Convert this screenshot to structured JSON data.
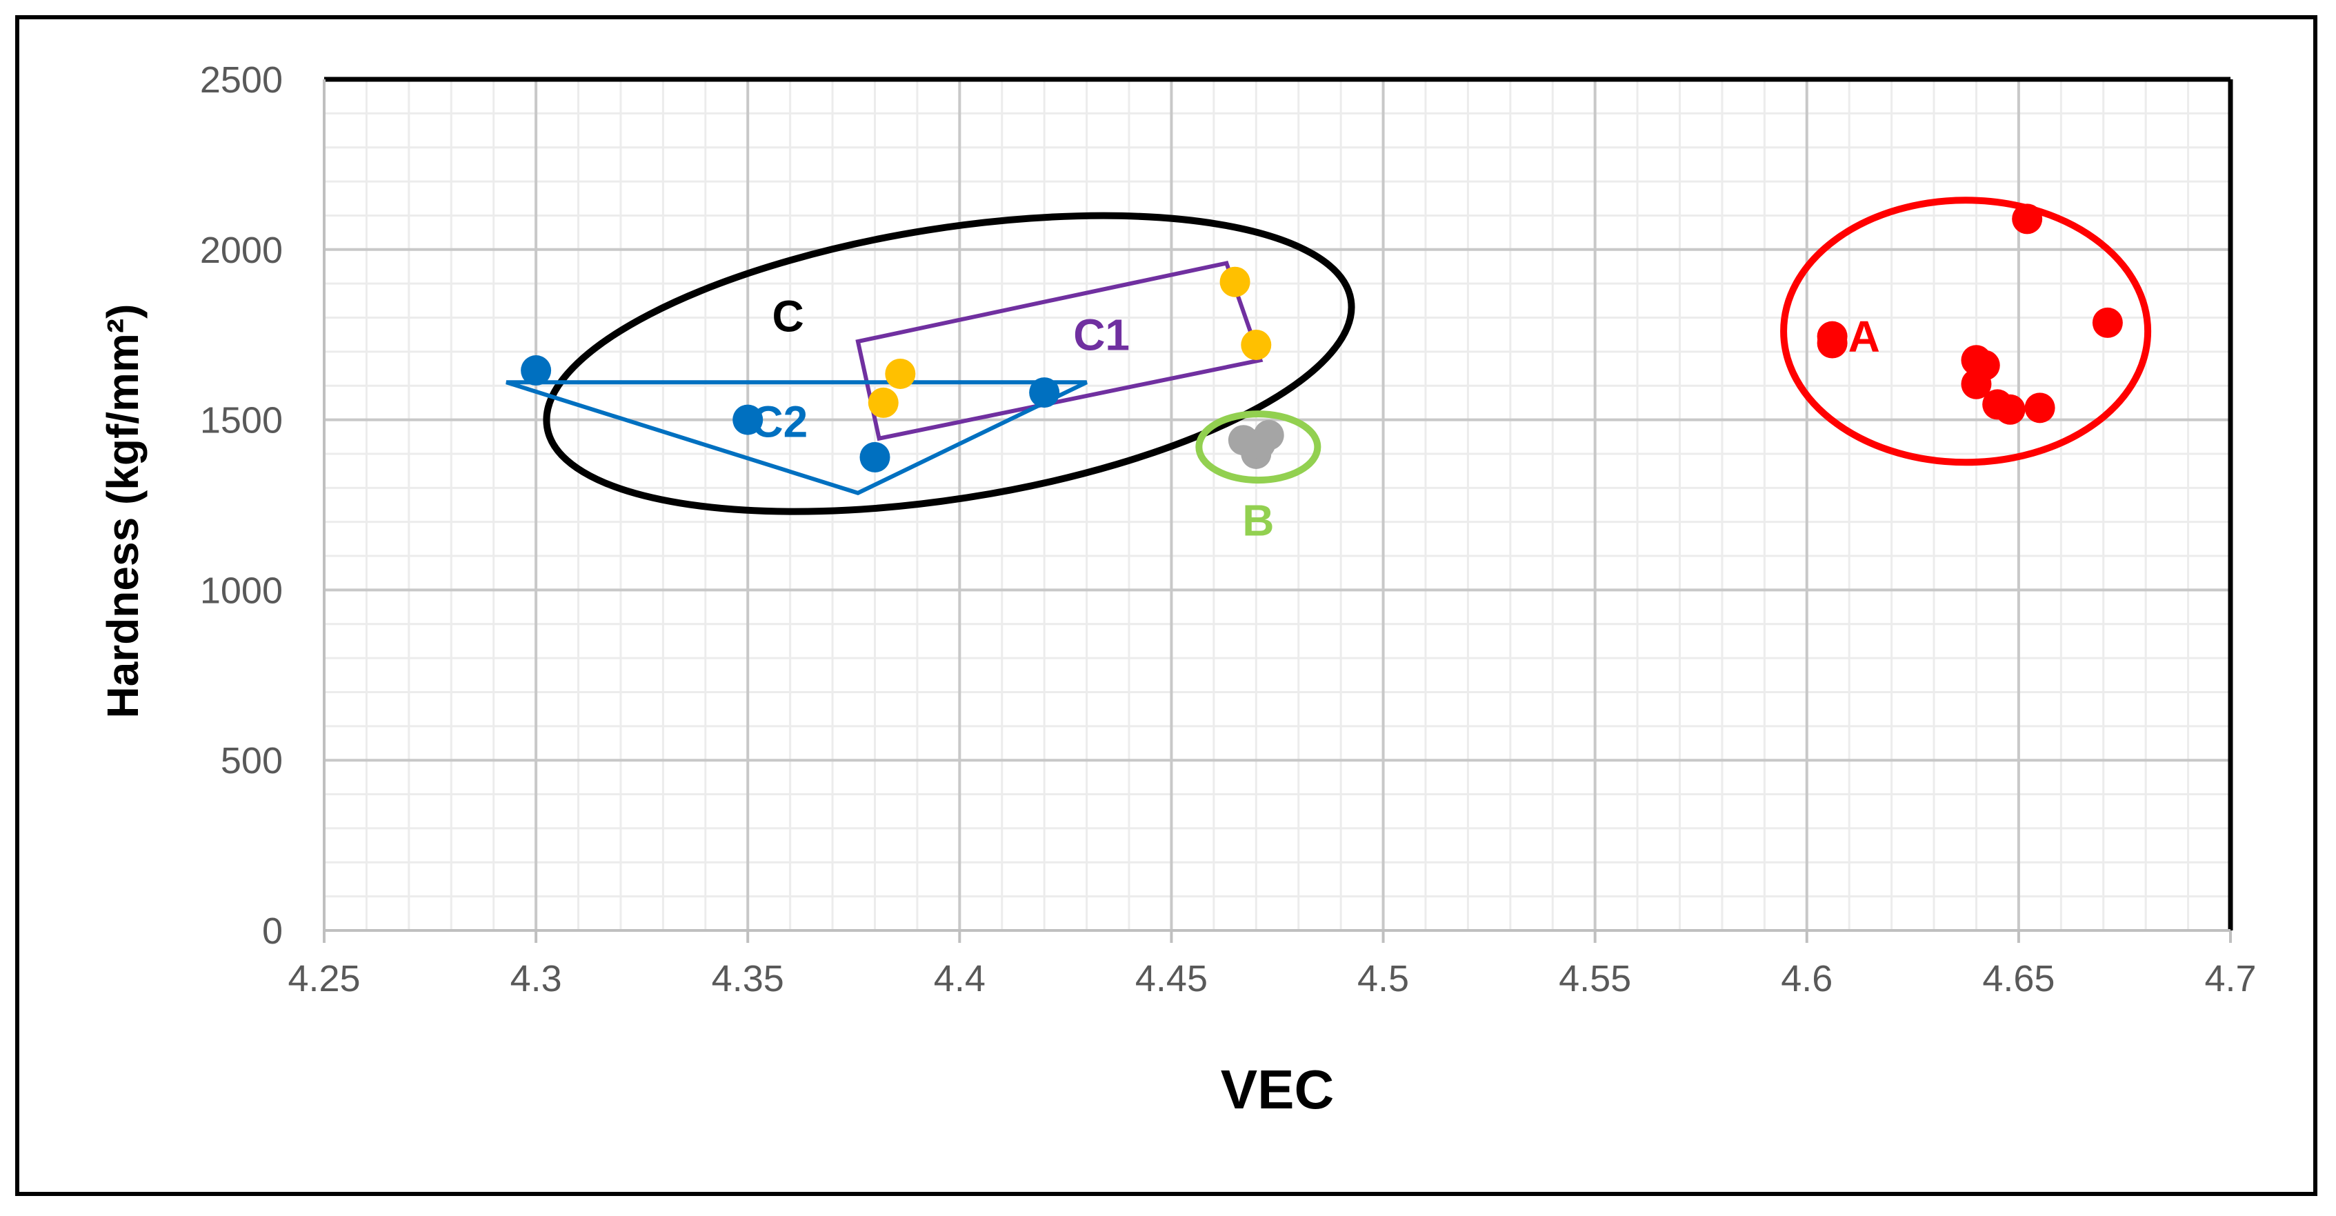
{
  "chart_data": {
    "type": "scatter",
    "title": "",
    "xlabel": "VEC",
    "ylabel": "Hardness (kgf/mm²)",
    "xlim": [
      4.25,
      4.7
    ],
    "ylim": [
      0,
      2500
    ],
    "x_ticks": [
      "4.25",
      "4.3",
      "4.35",
      "4.4",
      "4.45",
      "4.5",
      "4.55",
      "4.6",
      "4.65",
      "4.7"
    ],
    "y_ticks": [
      "0",
      "500",
      "1000",
      "1500",
      "2000",
      "2500"
    ],
    "grid": true,
    "legend": "none",
    "series": [
      {
        "color": "#0070C0",
        "points": [
          {
            "x": 4.3,
            "y": 1645
          },
          {
            "x": 4.35,
            "y": 1500
          },
          {
            "x": 4.38,
            "y": 1390
          },
          {
            "x": 4.42,
            "y": 1580
          }
        ]
      },
      {
        "color": "#FFC000",
        "points": [
          {
            "x": 4.382,
            "y": 1550
          },
          {
            "x": 4.386,
            "y": 1635
          },
          {
            "x": 4.465,
            "y": 1905
          },
          {
            "x": 4.47,
            "y": 1720
          }
        ]
      },
      {
        "color": "#A5A5A5",
        "points": [
          {
            "x": 4.467,
            "y": 1440
          },
          {
            "x": 4.47,
            "y": 1400
          },
          {
            "x": 4.473,
            "y": 1455
          },
          {
            "x": 4.471,
            "y": 1430
          }
        ]
      },
      {
        "color": "#FF0000",
        "points": [
          {
            "x": 4.606,
            "y": 1745
          },
          {
            "x": 4.606,
            "y": 1725
          },
          {
            "x": 4.64,
            "y": 1675
          },
          {
            "x": 4.642,
            "y": 1660
          },
          {
            "x": 4.64,
            "y": 1605
          },
          {
            "x": 4.645,
            "y": 1545
          },
          {
            "x": 4.648,
            "y": 1530
          },
          {
            "x": 4.655,
            "y": 1535
          },
          {
            "x": 4.652,
            "y": 2090
          },
          {
            "x": 4.671,
            "y": 1785
          }
        ]
      }
    ],
    "annotations": [
      {
        "text": "A",
        "color": "#FF0000"
      },
      {
        "text": "B",
        "color": "#92D050"
      },
      {
        "text": "C",
        "color": "#000000"
      },
      {
        "text": "C1",
        "color": "#7030A0"
      },
      {
        "text": "C2",
        "color": "#0070C0"
      }
    ]
  }
}
